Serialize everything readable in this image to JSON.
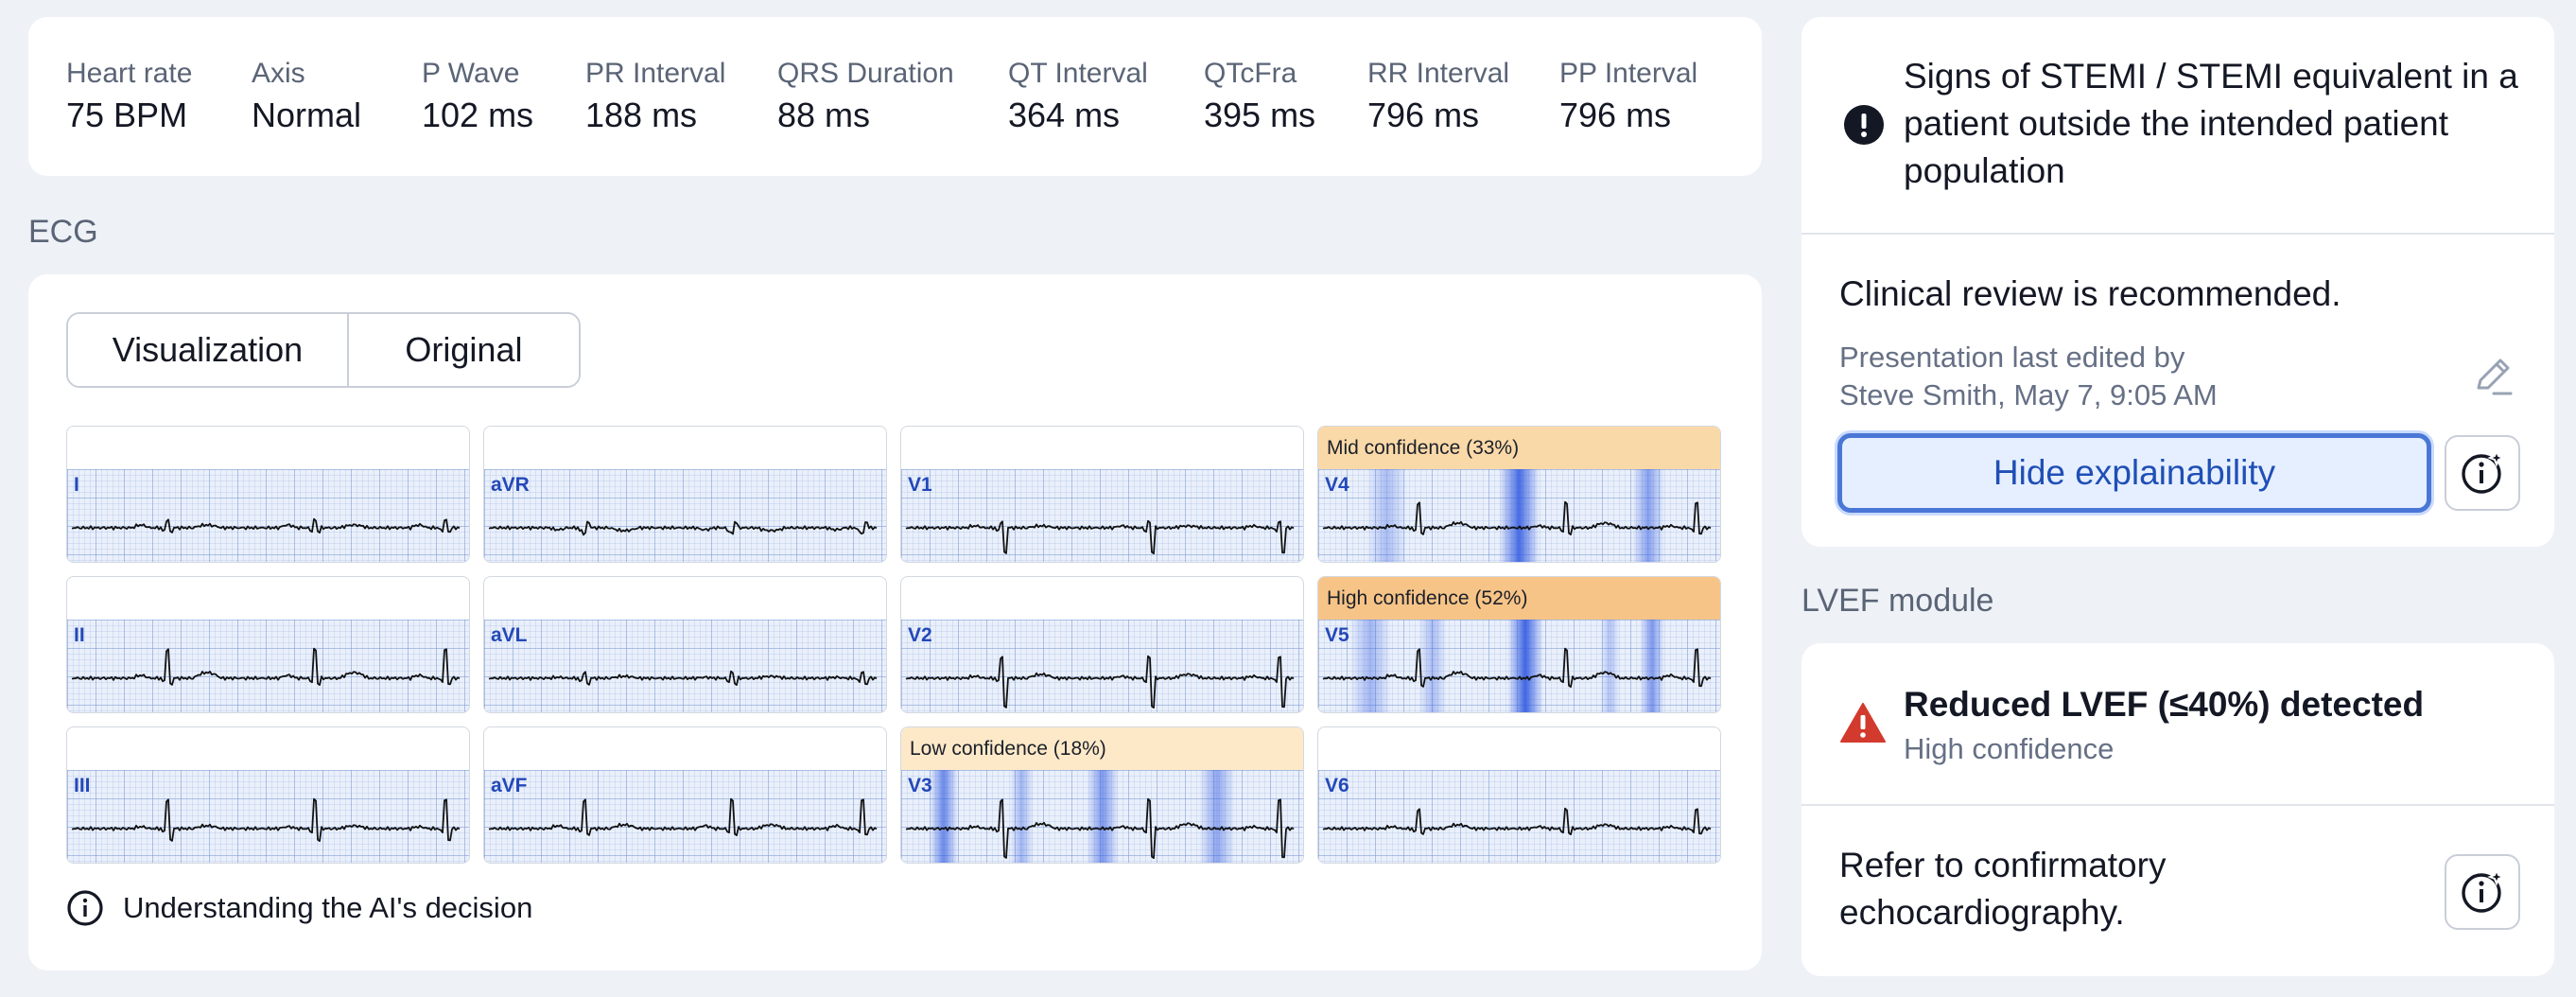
{
  "metrics": [
    {
      "label": "Heart rate",
      "value": "75 BPM"
    },
    {
      "label": "Axis",
      "value": "Normal"
    },
    {
      "label": "P Wave",
      "value": "102 ms"
    },
    {
      "label": "PR Interval",
      "value": "188 ms"
    },
    {
      "label": "QRS Duration",
      "value": "88 ms"
    },
    {
      "label": "QT Interval",
      "value": "364 ms"
    },
    {
      "label": "QTcFra",
      "value": "395 ms"
    },
    {
      "label": "RR Interval",
      "value": "796 ms"
    },
    {
      "label": "PP Interval",
      "value": "796 ms"
    }
  ],
  "ecg": {
    "heading": "ECG",
    "tabs": [
      "Visualization",
      "Original"
    ],
    "explain_link": "Understanding the AI's decision",
    "leads": [
      {
        "name": "I",
        "header": ""
      },
      {
        "name": "aVR",
        "header": ""
      },
      {
        "name": "V1",
        "header": ""
      },
      {
        "name": "V4",
        "header": "Mid confidence (33%)"
      },
      {
        "name": "II",
        "header": ""
      },
      {
        "name": "aVL",
        "header": ""
      },
      {
        "name": "V2",
        "header": ""
      },
      {
        "name": "V5",
        "header": "High confidence (52%)"
      },
      {
        "name": "III",
        "header": ""
      },
      {
        "name": "aVF",
        "header": ""
      },
      {
        "name": "V3",
        "header": "Low confidence (18%)"
      },
      {
        "name": "V6",
        "header": ""
      }
    ]
  },
  "alert": {
    "title": "Signs of STEMI / STEMI equivalent in a patient outside the intended patient population",
    "recommendation": "Clinical review is recommended.",
    "edited_line1": "Presentation last edited by",
    "edited_line2": "Steve Smith, May 7, 9:05 AM",
    "hide_button": "Hide explainability"
  },
  "lvef": {
    "heading": "LVEF module",
    "title": "Reduced LVEF (≤40%) detected",
    "confidence": "High confidence",
    "note": "Refer to confirmatory echocardiography."
  },
  "colors": {
    "mid": "#fad9a8",
    "high": "#f7c487",
    "low": "#fde9c8",
    "accent": "#1f4fb6",
    "warning": "#d23a2e"
  }
}
